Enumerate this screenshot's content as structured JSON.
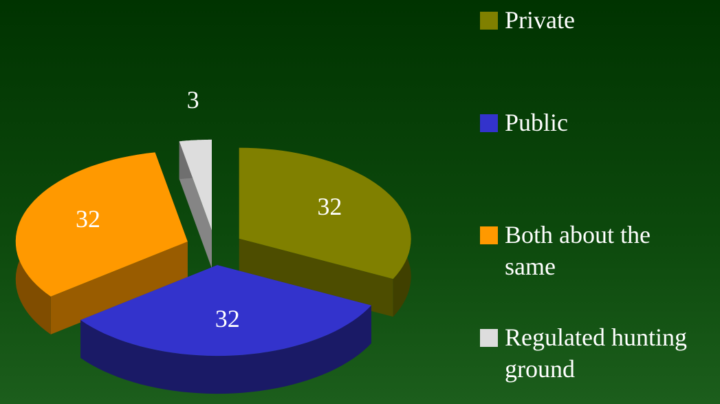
{
  "chart_data": {
    "type": "pie",
    "categories": [
      "Private",
      "Public",
      "Both about the same",
      "Regulated hunting ground"
    ],
    "values": [
      32,
      32,
      32,
      3
    ],
    "colors": [
      "#808000",
      "#3333cc",
      "#ff9900",
      "#dddddd"
    ],
    "legend": "right"
  }
}
